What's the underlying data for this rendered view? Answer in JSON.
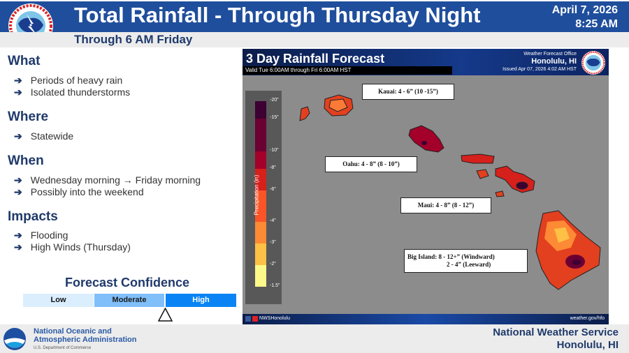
{
  "header": {
    "title": "Total Rainfall - Through Thursday Night",
    "subtitle": "Through 6 AM Friday",
    "date": "April 7, 2026",
    "time": "8:25 AM",
    "logo_text": "NATIONAL WEATHER SERVICE"
  },
  "sections": [
    {
      "heading": "What",
      "items": [
        "Periods of heavy rain",
        "Isolated thunderstorms"
      ]
    },
    {
      "heading": "Where",
      "items": [
        "Statewide"
      ]
    },
    {
      "heading": "When",
      "items": [
        "Wednesday morning → Friday morning",
        "Possibly into the weekend"
      ]
    },
    {
      "heading": "Impacts",
      "items": [
        "Flooding",
        "High Winds (Thursday)"
      ]
    }
  ],
  "confidence": {
    "title": "Forecast Confidence",
    "levels": [
      "Low",
      "Moderate",
      "High"
    ],
    "selected": "High",
    "indicator_position": "Moderate-High boundary",
    "colors": [
      "#dbeefe",
      "#80bff9",
      "#0a84f4"
    ]
  },
  "map": {
    "title": "3 Day Rainfall Forecast",
    "valid": "Valid Tue 6:00AM through Fri 6:00AM HST",
    "office_label": "Weather Forecast Office",
    "office": "Honolulu, HI",
    "issued": "Issued Apr 07, 2026 4:02 AM HST",
    "social": "NWSHonolulu",
    "url": "weather.gov/hfo",
    "legend": {
      "title": "Precipitation (in)",
      "ticks": [
        "20\"",
        "15\"",
        "10\"",
        "8\"",
        "6\"",
        "4\"",
        "3\"",
        "2\"",
        "1.5\""
      ],
      "colors": [
        "#3c0033",
        "#6b0033",
        "#a3002a",
        "#d5201c",
        "#fb5427",
        "#fd8a35",
        "#fec045",
        "#fef88a"
      ]
    },
    "labels": {
      "kauai": "Kauai: 4 - 6” (10 -15”)",
      "oahu": "Oahu: 4 - 8” (8 - 10”)",
      "maui": "Maui: 4 - 8” (8 - 12”)",
      "big_island_1": "Big Island: 8 - 12+” (Windward)",
      "big_island_2": "2 - 4” (Leeward)"
    }
  },
  "footer": {
    "noaa_line1": "National Oceanic and",
    "noaa_line2": "Atmospheric Administration",
    "noaa_sub": "U.S. Department of Commerce",
    "nws_line1": "National Weather Service",
    "nws_line2": "Honolulu, HI"
  }
}
